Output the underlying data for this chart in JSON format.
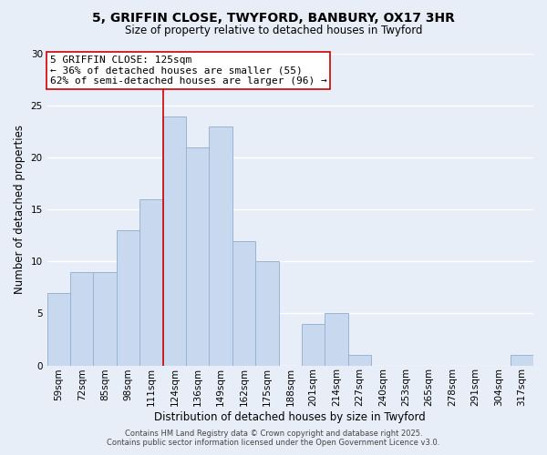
{
  "title_line1": "5, GRIFFIN CLOSE, TWYFORD, BANBURY, OX17 3HR",
  "title_line2": "Size of property relative to detached houses in Twyford",
  "xlabel": "Distribution of detached houses by size in Twyford",
  "ylabel": "Number of detached properties",
  "bar_labels": [
    "59sqm",
    "72sqm",
    "85sqm",
    "98sqm",
    "111sqm",
    "124sqm",
    "136sqm",
    "149sqm",
    "162sqm",
    "175sqm",
    "188sqm",
    "201sqm",
    "214sqm",
    "227sqm",
    "240sqm",
    "253sqm",
    "265sqm",
    "278sqm",
    "291sqm",
    "304sqm",
    "317sqm"
  ],
  "bar_heights": [
    7,
    9,
    9,
    13,
    16,
    24,
    21,
    23,
    12,
    10,
    0,
    4,
    5,
    1,
    0,
    0,
    0,
    0,
    0,
    0,
    1
  ],
  "bar_color": "#c8d8ee",
  "bar_edge_color": "#99b4d4",
  "vline_color": "#cc0000",
  "annotation_title": "5 GRIFFIN CLOSE: 125sqm",
  "annotation_line2": "← 36% of detached houses are smaller (55)",
  "annotation_line3": "62% of semi-detached houses are larger (96) →",
  "annotation_box_facecolor": "#ffffff",
  "annotation_box_edgecolor": "#cc0000",
  "ylim": [
    0,
    30
  ],
  "yticks": [
    0,
    5,
    10,
    15,
    20,
    25,
    30
  ],
  "footer_line1": "Contains HM Land Registry data © Crown copyright and database right 2025.",
  "footer_line2": "Contains public sector information licensed under the Open Government Licence v3.0.",
  "background_color": "#e8eef8",
  "grid_color": "#ffffff",
  "title_fontsize": 10,
  "subtitle_fontsize": 8.5,
  "xlabel_fontsize": 8.5,
  "ylabel_fontsize": 8.5,
  "tick_fontsize": 7.5,
  "annotation_fontsize": 8,
  "footer_fontsize": 6
}
